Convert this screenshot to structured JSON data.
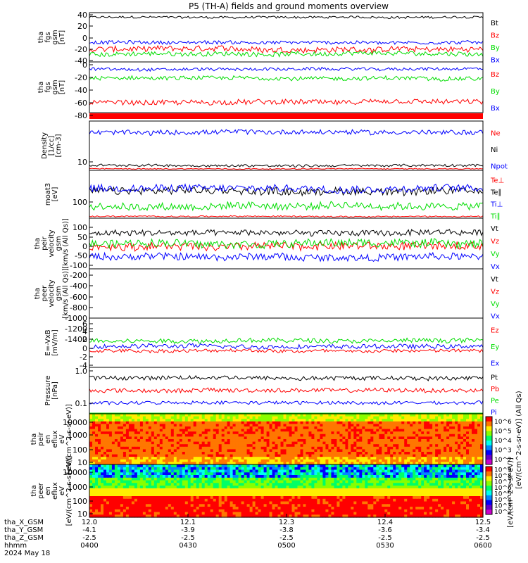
{
  "title": "P5 (TH-A) fields and ground moments overview",
  "footer": {
    "rows": [
      {
        "label": "tha_X_GSM",
        "values": [
          "12.0",
          "12.1",
          "12.3",
          "12.4",
          "12.5"
        ]
      },
      {
        "label": "tha_Y_GSM",
        "values": [
          "-4.1",
          "-3.9",
          "-3.8",
          "-3.6",
          "-3.4"
        ]
      },
      {
        "label": "tha_Z_GSM",
        "values": [
          "-2.5",
          "-2.5",
          "-2.5",
          "-2.5",
          "-2.5"
        ]
      },
      {
        "label": "hhmm",
        "values": [
          "0400",
          "0430",
          "0500",
          "0530",
          "0600"
        ]
      }
    ],
    "date": "2024 May 18"
  },
  "colorbar": {
    "label": "[eV/(cm^2-s-sr-eV)]",
    "overlap_label": "[eV/(cm^2-s-sr-eV)] (All Qs)",
    "top_ticks": [
      "10^6",
      "10^5",
      "10^4",
      "10^3",
      "10^2"
    ],
    "bottom_ticks": [
      "10^9",
      "10^8",
      "10^7",
      "10^6",
      "10^5",
      "10^4",
      "10^3",
      "10^2"
    ],
    "colors": [
      "#ff0000",
      "#ff7700",
      "#ffee00",
      "#88ff00",
      "#00ff66",
      "#00ffee",
      "#0088ff",
      "#0000ff",
      "#6600cc",
      "#cc00cc"
    ]
  },
  "chart_data": [
    {
      "type": "line",
      "id": "p1",
      "ylabel": [
        "tha",
        "fgs",
        "gsm",
        "[nT]"
      ],
      "yticks": [
        "40",
        "20",
        "0",
        "-20",
        "-40"
      ],
      "ylim": [
        -42,
        44
      ],
      "series": [
        {
          "name": "Bt",
          "color": "#000000",
          "level": 36,
          "noise": 2
        },
        {
          "name": "Bz",
          "color": "#ff0000",
          "level": -20,
          "noise": 5
        },
        {
          "name": "By",
          "color": "#00dd00",
          "level": -28,
          "noise": 4
        },
        {
          "name": "Bx",
          "color": "#0000ff",
          "level": -8,
          "noise": 3
        }
      ]
    },
    {
      "type": "line",
      "id": "p2",
      "ylabel": [
        "tha",
        "fgs",
        "gsm",
        "[nT]"
      ],
      "yticks": [
        "0",
        "-20",
        "-40",
        "-60",
        "-80"
      ],
      "ylim": [
        -95,
        4
      ],
      "series": [
        {
          "name": "Bz",
          "color": "#ff0000",
          "level": -75,
          "noise": 5
        },
        {
          "name": "By",
          "color": "#00dd00",
          "level": -28,
          "noise": 4
        },
        {
          "name": "Bx",
          "color": "#0000ff",
          "level": -10,
          "noise": 3
        }
      ]
    },
    {
      "type": "line",
      "id": "p3",
      "ylabel": [
        "Density",
        "[1/cc]",
        "[cm-3]"
      ],
      "yticks": [
        "10"
      ],
      "ylim": [
        9,
        40
      ],
      "series": [
        {
          "name": "Ne",
          "color": "#ff0000",
          "level": 10,
          "noise": 0.3
        },
        {
          "name": "Ni",
          "color": "#000000",
          "level": 12,
          "noise": 0.8
        },
        {
          "name": "Npot",
          "color": "#0000ff",
          "level": 33,
          "noise": 1.5
        }
      ]
    },
    {
      "type": "line",
      "id": "p4",
      "ylabel": [
        "moat3",
        "[eV]"
      ],
      "yticks": [
        "100"
      ],
      "ylim": [
        80,
        400
      ],
      "series": [
        {
          "name": "Te⊥",
          "color": "#ff0000",
          "level": 92,
          "noise": 4
        },
        {
          "name": "Te∥",
          "color": "#000000",
          "level": 260,
          "noise": 25
        },
        {
          "name": "Ti⊥",
          "color": "#0000ff",
          "level": 280,
          "noise": 25
        },
        {
          "name": "Ti∥",
          "color": "#00dd00",
          "level": 160,
          "noise": 25
        }
      ]
    },
    {
      "type": "line",
      "id": "p5",
      "ylabel": [
        "tha",
        "peir",
        "velocity",
        "gsm",
        "[km/s (All Qs)]"
      ],
      "yticks": [
        "100",
        "50",
        "0",
        "-50",
        "-100"
      ],
      "ylim": [
        -120,
        135
      ],
      "series": [
        {
          "name": "Vt",
          "color": "#000000",
          "level": 60,
          "noise": 15
        },
        {
          "name": "Vz",
          "color": "#ff0000",
          "level": -5,
          "noise": 20
        },
        {
          "name": "Vy",
          "color": "#00dd00",
          "level": 10,
          "noise": 20
        },
        {
          "name": "Vx",
          "color": "#0000ff",
          "level": -60,
          "noise": 18
        }
      ]
    },
    {
      "type": "line",
      "id": "p6",
      "ylabel": [
        "tha",
        "peer",
        "velocity",
        "gsm",
        "[km/s (All Qs)]"
      ],
      "yticks": [
        "-200",
        "-400",
        "-600",
        "-800",
        "-1000",
        "-1200",
        "-1400"
      ],
      "ylim": [
        -1450,
        -150
      ],
      "series": [
        {
          "name": "Vt",
          "color": "#000000"
        },
        {
          "name": "Vz",
          "color": "#ff0000"
        },
        {
          "name": "Vy",
          "color": "#00dd00"
        },
        {
          "name": "Vx",
          "color": "#0000ff"
        }
      ]
    },
    {
      "type": "line",
      "id": "p7",
      "ylabel": [
        "E=-VxB",
        "[mV/m]"
      ],
      "yticks": [
        "6",
        "4",
        "2",
        "0",
        "-2",
        "-4"
      ],
      "ylim": [
        -4.5,
        6.5
      ],
      "series": [
        {
          "name": "Ez",
          "color": "#ff0000",
          "level": -0.8,
          "noise": 0.4
        },
        {
          "name": "Ey",
          "color": "#00dd00",
          "level": 1.5,
          "noise": 0.5
        },
        {
          "name": "Ex",
          "color": "#0000ff",
          "level": 0.2,
          "noise": 0.5
        }
      ]
    },
    {
      "type": "line",
      "id": "p8",
      "ylabel": [
        "Pressure",
        "[nPa]"
      ],
      "yticks": [
        "1.0",
        "0.1"
      ],
      "ylim": [
        0.04,
        1.15
      ],
      "series": [
        {
          "name": "Pt",
          "color": "#000000",
          "level": 0.9,
          "noise": 0.05
        },
        {
          "name": "Pb",
          "color": "#ff0000",
          "level": 0.6,
          "noise": 0.05
        },
        {
          "name": "Pe",
          "color": "#00dd00",
          "level": 0.05,
          "noise": 0.003
        },
        {
          "name": "Pi",
          "color": "#0000ff",
          "level": 0.3,
          "noise": 0.04
        }
      ]
    },
    {
      "type": "heatmap",
      "id": "p9",
      "ylabel": [
        "tha",
        "peir",
        "en",
        "eflux",
        "eV",
        "[eV/(cm^2-s-sr-eV)]"
      ],
      "yticks": [
        "10000",
        "1000",
        "100",
        "10"
      ]
    },
    {
      "type": "heatmap",
      "id": "p10",
      "ylabel": [
        "tha",
        "peer",
        "en",
        "eflux",
        "eV",
        "[eV/(cm^2-s-sr-eV)]"
      ],
      "yticks": [
        "10000",
        "1000",
        "100",
        "10"
      ]
    }
  ]
}
